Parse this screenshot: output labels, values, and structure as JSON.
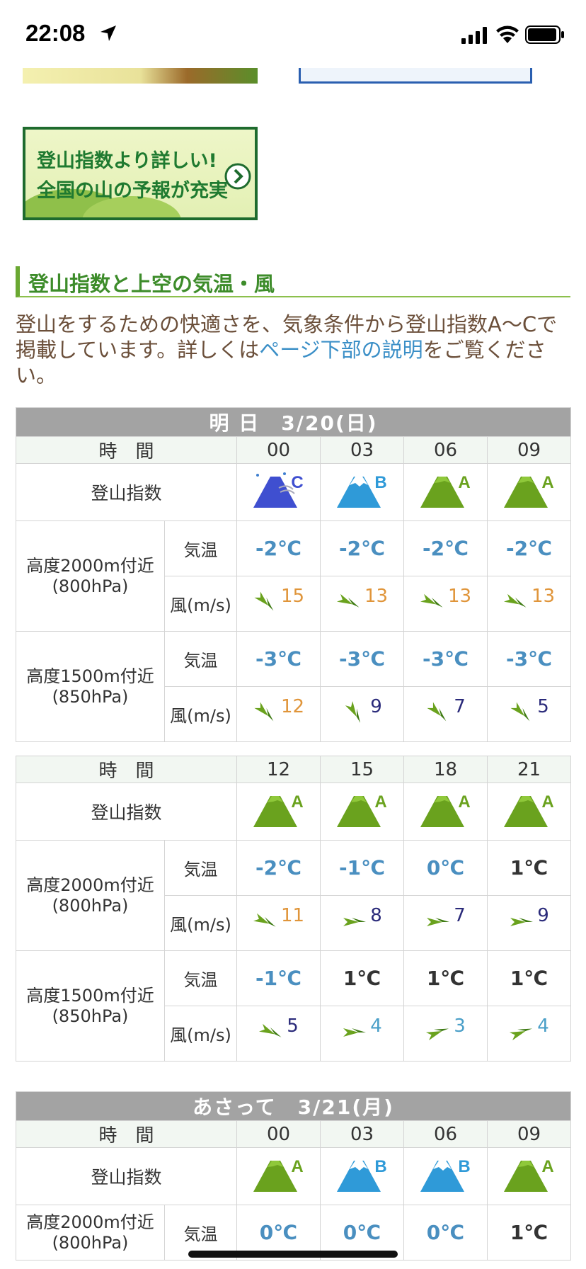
{
  "status_bar": {
    "time": "22:08"
  },
  "promo": {
    "line1": "登山指数より詳しい!",
    "line2": "全国の山の予報が充実"
  },
  "section": {
    "title": "登山指数と上空の気温・風",
    "intro_part1": "登山をするための快適さを、気象条件から登山指数A〜Cで掲載しています。詳しくは",
    "intro_link": "ページ下部の説明",
    "intro_part2": "をご覧ください。"
  },
  "labels": {
    "time": "時　間",
    "index": "登山指数",
    "alt2000": "高度2000m付近",
    "hpa800": "(800hPa)",
    "alt1500": "高度1500m付近",
    "hpa850": "(850hPa)",
    "temp": "気温",
    "wind": "風(m/s)"
  },
  "colors": {
    "index_a": "#6aa21e",
    "index_b": "#2f9ad8",
    "index_c": "#3f4fd0",
    "heading": "#3d8c2a",
    "link": "#3b8fc7"
  },
  "tables": [
    {
      "date": "明 日　3/20(日)",
      "times": [
        "00",
        "03",
        "06",
        "09"
      ],
      "index": [
        "C",
        "B",
        "A",
        "A"
      ],
      "t2000": [
        "-2℃",
        "-2℃",
        "-2℃",
        "-2℃"
      ],
      "w2000": [
        {
          "v": "15",
          "dir": "nw"
        },
        {
          "v": "13",
          "dir": "wnw"
        },
        {
          "v": "13",
          "dir": "wnw"
        },
        {
          "v": "13",
          "dir": "wnw"
        }
      ],
      "t1500": [
        "-3℃",
        "-3℃",
        "-3℃",
        "-3℃"
      ],
      "w1500": [
        {
          "v": "12",
          "dir": "nw"
        },
        {
          "v": "9",
          "dir": "nnw"
        },
        {
          "v": "7",
          "dir": "nw"
        },
        {
          "v": "5",
          "dir": "nw"
        }
      ]
    },
    {
      "date": "",
      "times": [
        "12",
        "15",
        "18",
        "21"
      ],
      "index": [
        "A",
        "A",
        "A",
        "A"
      ],
      "t2000": [
        "-2℃",
        "-1℃",
        "0℃",
        "1℃"
      ],
      "w2000": [
        {
          "v": "11",
          "dir": "wnw"
        },
        {
          "v": "8",
          "dir": "w"
        },
        {
          "v": "7",
          "dir": "w"
        },
        {
          "v": "9",
          "dir": "w"
        }
      ],
      "t1500": [
        "-1℃",
        "1℃",
        "1℃",
        "1℃"
      ],
      "w1500": [
        {
          "v": "5",
          "dir": "wnw"
        },
        {
          "v": "4",
          "dir": "w"
        },
        {
          "v": "3",
          "dir": "wsw"
        },
        {
          "v": "4",
          "dir": "wsw"
        }
      ]
    },
    {
      "date": "あさって　3/21(月)",
      "times": [
        "00",
        "03",
        "06",
        "09"
      ],
      "index": [
        "A",
        "B",
        "B",
        "A"
      ],
      "t2000": [
        "0℃",
        "0℃",
        "0℃",
        "1℃"
      ]
    }
  ]
}
